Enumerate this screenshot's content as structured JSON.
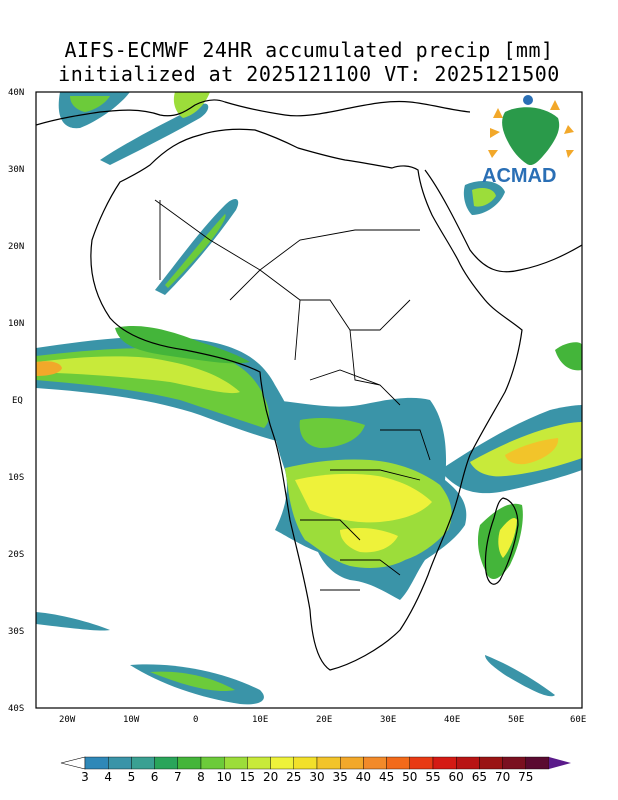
{
  "title_line1": "AIFS-ECMWF 24HR accumulated precip [mm]",
  "title_line2": "initialized at 2025121100 VT: 2025121500",
  "logo": {
    "text": "ACMAD",
    "color": "#2a6fb5"
  },
  "lat_labels": [
    "40N",
    "30N",
    "20N",
    "10N",
    "EQ",
    "10S",
    "20S",
    "30S",
    "40S"
  ],
  "lon_labels": [
    "20W",
    "10W",
    "0",
    "10E",
    "20E",
    "30E",
    "40E",
    "50E",
    "60E"
  ],
  "colorbar": {
    "labels": [
      "3",
      "4",
      "5",
      "6",
      "7",
      "8",
      "10",
      "15",
      "20",
      "25",
      "30",
      "35",
      "40",
      "45",
      "50",
      "55",
      "60",
      "65",
      "70",
      "75"
    ],
    "colors": [
      "#2f88b8",
      "#3a94a8",
      "#3aa092",
      "#2aa55a",
      "#44b53a",
      "#6ccb3a",
      "#9cdd3a",
      "#c8ea3a",
      "#eef23a",
      "#f2e02a",
      "#f2c42a",
      "#f2a82a",
      "#f28a2a",
      "#f26a1a",
      "#e83a14",
      "#d41a14",
      "#b81414",
      "#9a1414",
      "#7a1020",
      "#5a0a30"
    ],
    "over_color": "#5a1a8a",
    "under_color": "#ffffff"
  }
}
